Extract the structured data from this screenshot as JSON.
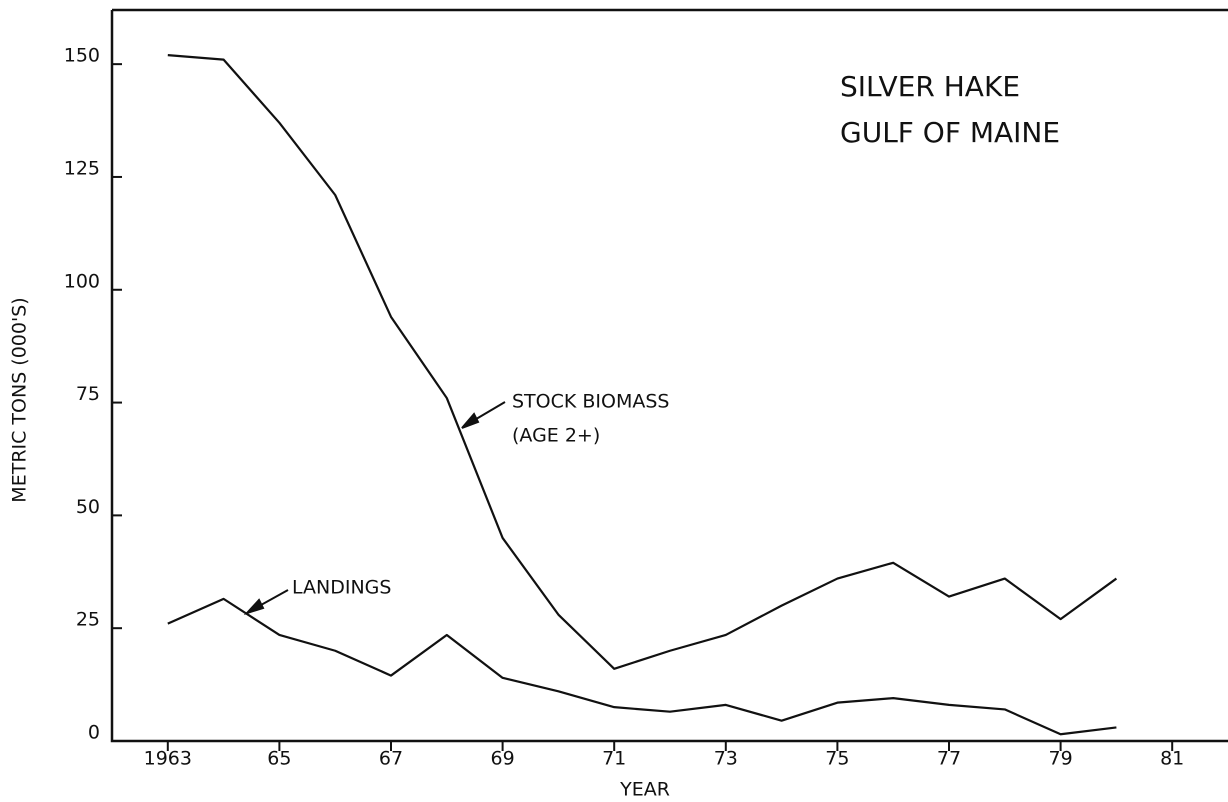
{
  "chart_data": {
    "type": "line",
    "title": "SILVER HAKE",
    "subtitle": "GULF OF MAINE",
    "xlabel": "YEAR",
    "ylabel": "METRIC TONS (000'S)",
    "annotations": [
      "STOCK BIOMASS",
      "(AGE 2+)",
      "LANDINGS"
    ],
    "x": [
      1963,
      1964,
      1965,
      1966,
      1967,
      1968,
      1969,
      1970,
      1971,
      1972,
      1973,
      1974,
      1975,
      1976,
      1977,
      1978,
      1979,
      1980
    ],
    "series": [
      {
        "color": "#111111",
        "values": [
          152,
          151,
          137,
          121,
          94,
          76,
          45,
          28,
          16,
          20,
          23.5,
          30,
          36,
          39.5,
          32,
          36,
          27,
          36
        ]
      },
      {
        "color": "#111111",
        "values": [
          26,
          31.5,
          23.5,
          20,
          14.5,
          23.5,
          14,
          11,
          7.5,
          6.5,
          8,
          4.5,
          8.5,
          9.5,
          8,
          7,
          1.5,
          3
        ]
      }
    ],
    "xlim": [
      1962,
      1982
    ],
    "xticks": [
      {
        "value": 1963,
        "label": "1963"
      },
      {
        "value": 1965,
        "label": "65"
      },
      {
        "value": 1967,
        "label": "67"
      },
      {
        "value": 1969,
        "label": "69"
      },
      {
        "value": 1971,
        "label": "71"
      },
      {
        "value": 1973,
        "label": "73"
      },
      {
        "value": 1975,
        "label": "75"
      },
      {
        "value": 1977,
        "label": "77"
      },
      {
        "value": 1979,
        "label": "79"
      },
      {
        "value": 1981,
        "label": "81"
      }
    ],
    "ylim": [
      0,
      162
    ],
    "yticks": [
      0,
      25,
      50,
      75,
      100,
      125,
      150
    ],
    "grid": false
  }
}
